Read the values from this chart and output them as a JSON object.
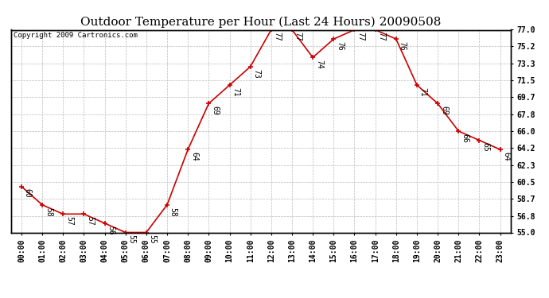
{
  "title": "Outdoor Temperature per Hour (Last 24 Hours) 20090508",
  "copyright": "Copyright 2009 Cartronics.com",
  "hours": [
    "00:00",
    "01:00",
    "02:00",
    "03:00",
    "04:00",
    "05:00",
    "06:00",
    "07:00",
    "08:00",
    "09:00",
    "10:00",
    "11:00",
    "12:00",
    "13:00",
    "14:00",
    "15:00",
    "16:00",
    "17:00",
    "18:00",
    "19:00",
    "20:00",
    "21:00",
    "22:00",
    "23:00"
  ],
  "temps": [
    60,
    58,
    57,
    57,
    56,
    55,
    55,
    58,
    64,
    69,
    71,
    73,
    77,
    77,
    74,
    76,
    77,
    77,
    76,
    71,
    69,
    66,
    65,
    64
  ],
  "line_color": "#cc0000",
  "marker_color": "#cc0000",
  "bg_color": "#ffffff",
  "plot_bg_color": "#ffffff",
  "grid_color": "#bbbbbb",
  "title_fontsize": 11,
  "label_fontsize": 7,
  "annotation_fontsize": 7,
  "copyright_fontsize": 6.5,
  "ylim_min": 55.0,
  "ylim_max": 77.0,
  "yticks": [
    55.0,
    56.8,
    58.7,
    60.5,
    62.3,
    64.2,
    66.0,
    67.8,
    69.7,
    71.5,
    73.3,
    75.2,
    77.0
  ]
}
